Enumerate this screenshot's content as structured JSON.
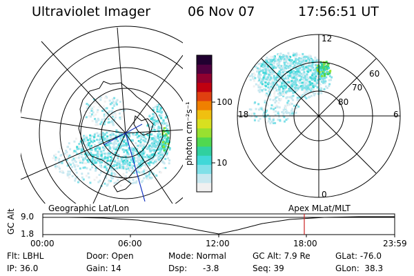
{
  "header": {
    "title": "Ultraviolet Imager",
    "date": "06 Nov 07",
    "time": "17:56:51 UT"
  },
  "colorbar": {
    "unit_label": "photon cm⁻²s⁻¹",
    "ticks": [
      "100",
      "10"
    ],
    "colors": [
      "#f0f0f0",
      "#c8e8f0",
      "#80e0e8",
      "#40d8d8",
      "#30d0a0",
      "#50d850",
      "#98e030",
      "#d8e020",
      "#f0c010",
      "#f08000",
      "#e04010",
      "#c00010",
      "#900030",
      "#500040",
      "#200030"
    ]
  },
  "polar_plot": {
    "mlt_labels": [
      "12",
      "6",
      "0",
      "18"
    ],
    "lat_labels": [
      "60",
      "70",
      "80"
    ]
  },
  "time_panel": {
    "left_title": "Geographic Lat/Lon",
    "right_title": "Apex  MLat/MLT",
    "y_axis_label": "GC Alt",
    "y_ticks": [
      "9.0",
      "1.8"
    ],
    "x_ticks": [
      "00:00",
      "06:00",
      "12:00",
      "18:00",
      "23:59"
    ],
    "current_time_marker_color": "#cc2020"
  },
  "info": {
    "filter": "Flt: LBHL",
    "door": "Door: Open",
    "mode": "Mode: Normal",
    "gc_alt": "GC Alt: 7.9 Re",
    "glat": "GLat: -76.0",
    "ip": "IP: 36.0",
    "gain": "Gain: 14",
    "dsp_label": "Dsp:",
    "dsp_value": "-3.8",
    "seq": "Seq: 39",
    "glon": "GLon:  38.3"
  }
}
